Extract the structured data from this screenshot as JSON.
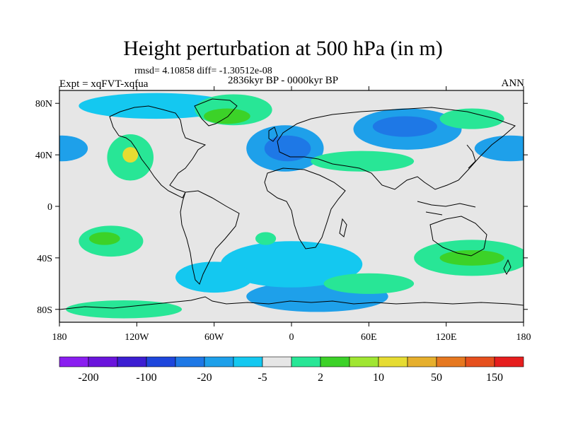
{
  "header": {
    "title": "Height perturbation at 500 hPa (in m)",
    "stats": "rmsd= 4.10858 diff= -1.30512e-08",
    "experiment": "Expt = xqFVT-xqfua",
    "period": "2836kyr BP - 0000kyr BP",
    "season": "ANN"
  },
  "axes": {
    "lon_ticks": [
      {
        "lon": -180,
        "label": "180"
      },
      {
        "lon": -120,
        "label": "120W"
      },
      {
        "lon": -60,
        "label": "60W"
      },
      {
        "lon": 0,
        "label": "0"
      },
      {
        "lon": 60,
        "label": "60E"
      },
      {
        "lon": 120,
        "label": "120E"
      },
      {
        "lon": 180,
        "label": "180"
      }
    ],
    "lat_ticks": [
      {
        "lat": 80,
        "label": "80N"
      },
      {
        "lat": 40,
        "label": "40N"
      },
      {
        "lat": 0,
        "label": "0"
      },
      {
        "lat": -40,
        "label": "40S"
      },
      {
        "lat": -80,
        "label": "80S"
      }
    ],
    "lon_range": [
      -180,
      180
    ],
    "lat_range": [
      -90,
      90
    ]
  },
  "colorbar": {
    "colors": [
      "#8a1ef0",
      "#6a14dc",
      "#3c1ed2",
      "#1e46dc",
      "#1e78e6",
      "#1ea0ea",
      "#14c8f0",
      "#e6e6e6",
      "#28e696",
      "#3cd228",
      "#a0e632",
      "#e6dc32",
      "#e6af2d",
      "#e67820",
      "#e6501e",
      "#e61e1e"
    ],
    "labels": [
      {
        "after_index": 0,
        "text": "-200"
      },
      {
        "after_index": 2,
        "text": "-100"
      },
      {
        "after_index": 4,
        "text": "-20"
      },
      {
        "after_index": 6,
        "text": "-5"
      },
      {
        "after_index": 8,
        "text": "2"
      },
      {
        "after_index": 10,
        "text": "10"
      },
      {
        "after_index": 12,
        "text": "50"
      },
      {
        "after_index": 14,
        "text": "150"
      }
    ]
  },
  "field_regions": [
    {
      "lon": 90,
      "lat": 60,
      "rlon": 42,
      "rlat": 16,
      "level": "neg_mid"
    },
    {
      "lon": 88,
      "lat": 62,
      "rlon": 25,
      "rlat": 8,
      "level": "neg_strong"
    },
    {
      "lon": -5,
      "lat": 45,
      "rlon": 30,
      "rlat": 18,
      "level": "neg_mid"
    },
    {
      "lon": -3,
      "lat": 45,
      "rlon": 18,
      "rlat": 10,
      "level": "neg_strong"
    },
    {
      "lon": 170,
      "lat": 45,
      "rlon": 28,
      "rlat": 10,
      "level": "neg_mid"
    },
    {
      "lon": -178,
      "lat": 45,
      "rlon": 20,
      "rlat": 10,
      "level": "neg_mid"
    },
    {
      "lon": -105,
      "lat": 78,
      "rlon": 60,
      "rlat": 10,
      "level": "neg_light"
    },
    {
      "lon": 20,
      "lat": -70,
      "rlon": 55,
      "rlat": 12,
      "level": "neg_mid"
    },
    {
      "lon": 0,
      "lat": -45,
      "rlon": 55,
      "rlat": 18,
      "level": "neg_light"
    },
    {
      "lon": -60,
      "lat": -55,
      "rlon": 30,
      "rlat": 12,
      "level": "neg_light"
    },
    {
      "lon": -45,
      "lat": 75,
      "rlon": 30,
      "rlat": 12,
      "level": "pos_light"
    },
    {
      "lon": -50,
      "lat": 70,
      "rlon": 18,
      "rlat": 6,
      "level": "pos_mid"
    },
    {
      "lon": -125,
      "lat": 38,
      "rlon": 18,
      "rlat": 18,
      "level": "pos_light"
    },
    {
      "lon": -125,
      "lat": 40,
      "rlon": 6,
      "rlat": 6,
      "level": "pos_strong"
    },
    {
      "lon": 55,
      "lat": 35,
      "rlon": 40,
      "rlat": 8,
      "level": "pos_light"
    },
    {
      "lon": 140,
      "lat": 68,
      "rlon": 25,
      "rlat": 8,
      "level": "pos_light"
    },
    {
      "lon": -140,
      "lat": -27,
      "rlon": 25,
      "rlat": 12,
      "level": "pos_light"
    },
    {
      "lon": -145,
      "lat": -25,
      "rlon": 12,
      "rlat": 5,
      "level": "pos_mid"
    },
    {
      "lon": 140,
      "lat": -40,
      "rlon": 45,
      "rlat": 14,
      "level": "pos_light"
    },
    {
      "lon": 140,
      "lat": -40,
      "rlon": 25,
      "rlat": 6,
      "level": "pos_mid"
    },
    {
      "lon": 60,
      "lat": -60,
      "rlon": 35,
      "rlat": 8,
      "level": "pos_light"
    },
    {
      "lon": -130,
      "lat": -80,
      "rlon": 45,
      "rlat": 7,
      "level": "pos_light"
    },
    {
      "lon": -20,
      "lat": -25,
      "rlon": 8,
      "rlat": 5,
      "level": "pos_light"
    }
  ]
}
